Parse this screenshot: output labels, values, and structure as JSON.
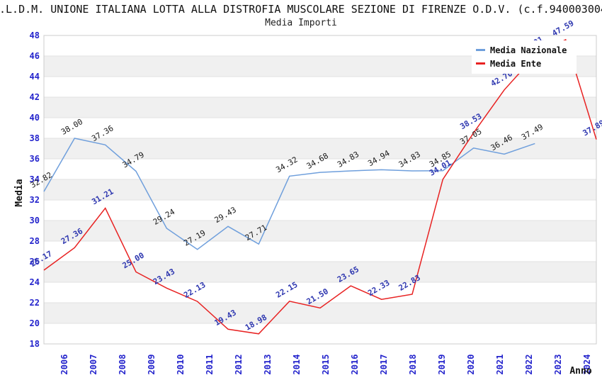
{
  "header": {
    "title": ".L.D.M. UNIONE ITALIANA LOTTA ALLA DISTROFIA MUSCOLARE SEZIONE DI FIRENZE O.D.V. (c.f.940003004",
    "subtitle": "Media Importi"
  },
  "chart_data": {
    "type": "line",
    "title": ".L.D.M. UNIONE ITALIANA LOTTA ALLA DISTROFIA MUSCOLARE SEZIONE DI FIRENZE O.D.V. (c.f.940003004",
    "subtitle": "Media Importi",
    "xlabel": "Anno",
    "ylabel": "Media",
    "ylim": [
      18,
      48
    ],
    "ytick_step": 2,
    "grid": "banded-alternating-horizontal",
    "legend_position": "top-right",
    "value_label_decimals": 2,
    "categories": [
      "2006",
      "2007",
      "2008",
      "2009",
      "2010",
      "2011",
      "2012",
      "2013",
      "2014",
      "2015",
      "2016",
      "2017",
      "2018",
      "2019",
      "2020",
      "2021",
      "2022",
      "2023",
      "2024"
    ],
    "series": [
      {
        "name": "Media Nazionale",
        "color": "#6f9fdc",
        "label_color": "#1a1a1a",
        "label_bold": false,
        "values": [
          32.82,
          38.0,
          37.36,
          34.79,
          29.24,
          27.19,
          29.43,
          27.71,
          34.32,
          34.68,
          34.83,
          34.94,
          34.83,
          34.85,
          37.05,
          36.46,
          37.49,
          null,
          null
        ]
      },
      {
        "name": "Media Ente",
        "color": "#e82222",
        "label_color": "#2f38b0",
        "label_bold": true,
        "values": [
          25.17,
          27.36,
          31.21,
          25.0,
          23.43,
          22.13,
          19.43,
          18.98,
          22.15,
          21.5,
          23.65,
          22.33,
          22.83,
          34.01,
          38.53,
          42.7,
          46.01,
          47.59,
          37.89
        ]
      }
    ]
  },
  "colors": {
    "background": "#ffffff",
    "band_fill": "#f0f0f0",
    "gridline": "#e2e2e2",
    "plot_border": "#cccccc",
    "axis_tick_label": "#2323cc",
    "axis_title": "#111111"
  }
}
